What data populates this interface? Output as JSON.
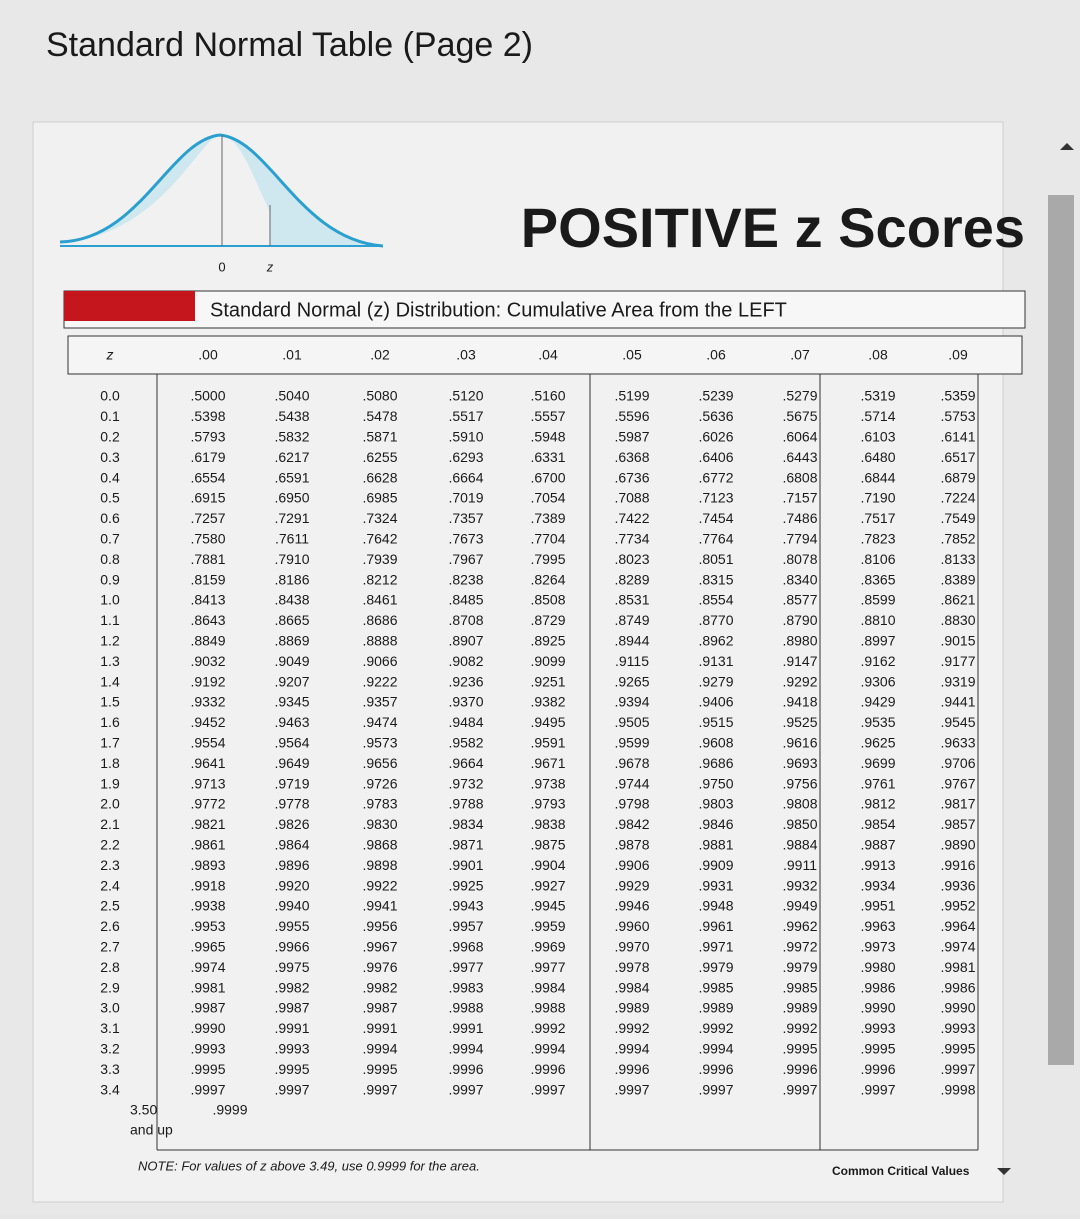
{
  "page_title": "Standard Normal Table (Page 2)",
  "graph": {
    "title": "POSITIVE z Scores",
    "origin_label": "0",
    "z_label": "z"
  },
  "table": {
    "caption": "Standard Normal (z) Distribution: Cumulative Area from the LEFT",
    "headers": [
      "z",
      ".00",
      ".01",
      ".02",
      ".03",
      ".04",
      ".05",
      ".06",
      ".07",
      ".08",
      ".09"
    ],
    "rows": [
      [
        "0.0",
        ".5000",
        ".5040",
        ".5080",
        ".5120",
        ".5160",
        ".5199",
        ".5239",
        ".5279",
        ".5319",
        ".5359"
      ],
      [
        "0.1",
        ".5398",
        ".5438",
        ".5478",
        ".5517",
        ".5557",
        ".5596",
        ".5636",
        ".5675",
        ".5714",
        ".5753"
      ],
      [
        "0.2",
        ".5793",
        ".5832",
        ".5871",
        ".5910",
        ".5948",
        ".5987",
        ".6026",
        ".6064",
        ".6103",
        ".6141"
      ],
      [
        "0.3",
        ".6179",
        ".6217",
        ".6255",
        ".6293",
        ".6331",
        ".6368",
        ".6406",
        ".6443",
        ".6480",
        ".6517"
      ],
      [
        "0.4",
        ".6554",
        ".6591",
        ".6628",
        ".6664",
        ".6700",
        ".6736",
        ".6772",
        ".6808",
        ".6844",
        ".6879"
      ],
      [
        "0.5",
        ".6915",
        ".6950",
        ".6985",
        ".7019",
        ".7054",
        ".7088",
        ".7123",
        ".7157",
        ".7190",
        ".7224"
      ],
      [
        "0.6",
        ".7257",
        ".7291",
        ".7324",
        ".7357",
        ".7389",
        ".7422",
        ".7454",
        ".7486",
        ".7517",
        ".7549"
      ],
      [
        "0.7",
        ".7580",
        ".7611",
        ".7642",
        ".7673",
        ".7704",
        ".7734",
        ".7764",
        ".7794",
        ".7823",
        ".7852"
      ],
      [
        "0.8",
        ".7881",
        ".7910",
        ".7939",
        ".7967",
        ".7995",
        ".8023",
        ".8051",
        ".8078",
        ".8106",
        ".8133"
      ],
      [
        "0.9",
        ".8159",
        ".8186",
        ".8212",
        ".8238",
        ".8264",
        ".8289",
        ".8315",
        ".8340",
        ".8365",
        ".8389"
      ],
      [
        "1.0",
        ".8413",
        ".8438",
        ".8461",
        ".8485",
        ".8508",
        ".8531",
        ".8554",
        ".8577",
        ".8599",
        ".8621"
      ],
      [
        "1.1",
        ".8643",
        ".8665",
        ".8686",
        ".8708",
        ".8729",
        ".8749",
        ".8770",
        ".8790",
        ".8810",
        ".8830"
      ],
      [
        "1.2",
        ".8849",
        ".8869",
        ".8888",
        ".8907",
        ".8925",
        ".8944",
        ".8962",
        ".8980",
        ".8997",
        ".9015"
      ],
      [
        "1.3",
        ".9032",
        ".9049",
        ".9066",
        ".9082",
        ".9099",
        ".9115",
        ".9131",
        ".9147",
        ".9162",
        ".9177"
      ],
      [
        "1.4",
        ".9192",
        ".9207",
        ".9222",
        ".9236",
        ".9251",
        ".9265",
        ".9279",
        ".9292",
        ".9306",
        ".9319"
      ],
      [
        "1.5",
        ".9332",
        ".9345",
        ".9357",
        ".9370",
        ".9382",
        ".9394",
        ".9406",
        ".9418",
        ".9429",
        ".9441"
      ],
      [
        "1.6",
        ".9452",
        ".9463",
        ".9474",
        ".9484",
        ".9495",
        ".9505",
        ".9515",
        ".9525",
        ".9535",
        ".9545"
      ],
      [
        "1.7",
        ".9554",
        ".9564",
        ".9573",
        ".9582",
        ".9591",
        ".9599",
        ".9608",
        ".9616",
        ".9625",
        ".9633"
      ],
      [
        "1.8",
        ".9641",
        ".9649",
        ".9656",
        ".9664",
        ".9671",
        ".9678",
        ".9686",
        ".9693",
        ".9699",
        ".9706"
      ],
      [
        "1.9",
        ".9713",
        ".9719",
        ".9726",
        ".9732",
        ".9738",
        ".9744",
        ".9750",
        ".9756",
        ".9761",
        ".9767"
      ],
      [
        "2.0",
        ".9772",
        ".9778",
        ".9783",
        ".9788",
        ".9793",
        ".9798",
        ".9803",
        ".9808",
        ".9812",
        ".9817"
      ],
      [
        "2.1",
        ".9821",
        ".9826",
        ".9830",
        ".9834",
        ".9838",
        ".9842",
        ".9846",
        ".9850",
        ".9854",
        ".9857"
      ],
      [
        "2.2",
        ".9861",
        ".9864",
        ".9868",
        ".9871",
        ".9875",
        ".9878",
        ".9881",
        ".9884",
        ".9887",
        ".9890"
      ],
      [
        "2.3",
        ".9893",
        ".9896",
        ".9898",
        ".9901",
        ".9904",
        ".9906",
        ".9909",
        ".9911",
        ".9913",
        ".9916"
      ],
      [
        "2.4",
        ".9918",
        ".9920",
        ".9922",
        ".9925",
        ".9927",
        ".9929",
        ".9931",
        ".9932",
        ".9934",
        ".9936"
      ],
      [
        "2.5",
        ".9938",
        ".9940",
        ".9941",
        ".9943",
        ".9945",
        ".9946",
        ".9948",
        ".9949",
        ".9951",
        ".9952"
      ],
      [
        "2.6",
        ".9953",
        ".9955",
        ".9956",
        ".9957",
        ".9959",
        ".9960",
        ".9961",
        ".9962",
        ".9963",
        ".9964"
      ],
      [
        "2.7",
        ".9965",
        ".9966",
        ".9967",
        ".9968",
        ".9969",
        ".9970",
        ".9971",
        ".9972",
        ".9973",
        ".9974"
      ],
      [
        "2.8",
        ".9974",
        ".9975",
        ".9976",
        ".9977",
        ".9977",
        ".9978",
        ".9979",
        ".9979",
        ".9980",
        ".9981"
      ],
      [
        "2.9",
        ".9981",
        ".9982",
        ".9982",
        ".9983",
        ".9984",
        ".9984",
        ".9985",
        ".9985",
        ".9986",
        ".9986"
      ],
      [
        "3.0",
        ".9987",
        ".9987",
        ".9987",
        ".9988",
        ".9988",
        ".9989",
        ".9989",
        ".9989",
        ".9990",
        ".9990"
      ],
      [
        "3.1",
        ".9990",
        ".9991",
        ".9991",
        ".9991",
        ".9992",
        ".9992",
        ".9992",
        ".9992",
        ".9993",
        ".9993"
      ],
      [
        "3.2",
        ".9993",
        ".9993",
        ".9994",
        ".9994",
        ".9994",
        ".9994",
        ".9994",
        ".9995",
        ".9995",
        ".9995"
      ],
      [
        "3.3",
        ".9995",
        ".9995",
        ".9995",
        ".9996",
        ".9996",
        ".9996",
        ".9996",
        ".9996",
        ".9996",
        ".9997"
      ],
      [
        "3.4",
        ".9997",
        ".9997",
        ".9997",
        ".9997",
        ".9997",
        ".9997",
        ".9997",
        ".9997",
        ".9997",
        ".9998"
      ]
    ],
    "last_row": {
      "z": "3.50",
      "suffix": "and up",
      "value": ".9999"
    },
    "note": "NOTE: For values of z above 3.49, use 0.9999 for the area.",
    "footer_link": "Common Critical Values"
  }
}
